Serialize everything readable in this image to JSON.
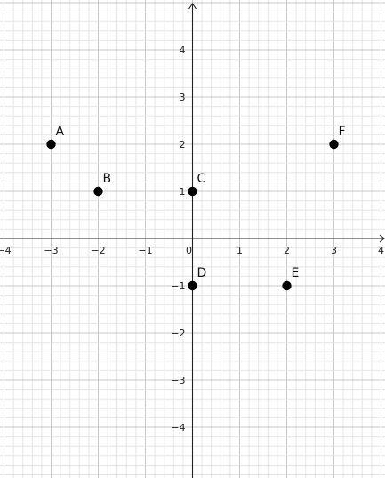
{
  "chart_data": {
    "type": "scatter",
    "title": "",
    "xlabel": "",
    "ylabel": "",
    "xlim": [
      -4,
      4
    ],
    "ylim": [
      -4.9,
      4.9
    ],
    "x_ticks": [
      "−4",
      "−3",
      "−2",
      "−1",
      "0",
      "1",
      "2",
      "3",
      "4"
    ],
    "y_ticks": [
      "−4",
      "−3",
      "−2",
      "−1",
      "1",
      "2",
      "3",
      "4"
    ],
    "grid": true,
    "minor_grid_per_unit": 5,
    "points": [
      {
        "label": "A",
        "x": -3,
        "y": 2
      },
      {
        "label": "B",
        "x": -2,
        "y": 1
      },
      {
        "label": "C",
        "x": 0,
        "y": 1
      },
      {
        "label": "D",
        "x": 0,
        "y": -1
      },
      {
        "label": "E",
        "x": 2,
        "y": -1
      },
      {
        "label": "F",
        "x": 3,
        "y": 2
      }
    ],
    "point_color": "#000000"
  }
}
